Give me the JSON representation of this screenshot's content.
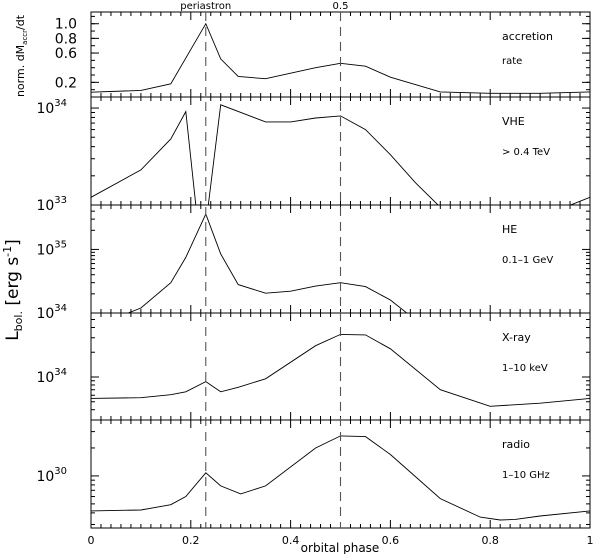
{
  "chart_data": {
    "type": "line",
    "xlabel": "orbital phase",
    "shared_ylabel": "L_bol. [erg s^-1]",
    "xlim": [
      0,
      1
    ],
    "x_ticks": [
      "0",
      "0.2",
      "0.4",
      "0.6",
      "0.8",
      "1"
    ],
    "markers": [
      {
        "x": 0.23,
        "label": "periastron"
      },
      {
        "x": 0.5,
        "label": "0.5"
      }
    ],
    "panels": [
      {
        "id": "accretion",
        "ylabel": "norm. dM_accr/dt",
        "scale": "linear",
        "ylim": [
          0.0,
          1.16
        ],
        "y_ticks": [
          {
            "v": 0.2,
            "label": "0.2"
          },
          {
            "v": 0.6,
            "label": "0.6"
          },
          {
            "v": 0.8,
            "label": "0.8"
          },
          {
            "v": 1.0,
            "label": "1.0"
          }
        ],
        "label_lines": [
          "accretion",
          "rate"
        ],
        "series": [
          {
            "x": [
              0.0,
              0.1,
              0.16,
              0.23,
              0.26,
              0.295,
              0.35,
              0.45,
              0.5,
              0.55,
              0.6,
              0.7,
              0.8,
              0.9,
              1.0
            ],
            "y": [
              0.065,
              0.09,
              0.18,
              1.0,
              0.52,
              0.28,
              0.25,
              0.4,
              0.46,
              0.42,
              0.27,
              0.07,
              0.05,
              0.05,
              0.07
            ]
          }
        ]
      },
      {
        "id": "vhe",
        "scale": "log",
        "ylim": [
          1e+33,
          1.3e+34
        ],
        "y_ticks": [
          {
            "v": 1e+33,
            "label": "10",
            "exp": "33"
          },
          {
            "v": 1e+34,
            "label": "10",
            "exp": "34"
          }
        ],
        "label_lines": [
          "VHE",
          "> 0.4 TeV"
        ],
        "series": [
          {
            "x": [
              0.0,
              0.1,
              0.16,
              0.19,
              0.21,
              0.235,
              0.26,
              0.35,
              0.4,
              0.45,
              0.5,
              0.55,
              0.6,
              0.65,
              0.7,
              0.8,
              0.9,
              0.95,
              1.0
            ],
            "y": [
              1.2e+33,
              2.3e+33,
              4.8e+33,
              9.2e+33,
              1e+33,
              1e+33,
              1.08e+34,
              7.2e+33,
              7.2e+33,
              7.9e+33,
              8.3e+33,
              6e+33,
              3.3e+33,
              1.7e+33,
              9.5e+32,
              9.5e+32,
              9.5e+32,
              9.5e+32,
              1.2e+33
            ]
          }
        ]
      },
      {
        "id": "he",
        "scale": "log",
        "ylim": [
          1e+34,
          5e+35
        ],
        "y_ticks": [
          {
            "v": 1e+34,
            "label": "10",
            "exp": "34"
          },
          {
            "v": 1e+35,
            "label": "10",
            "exp": "35"
          }
        ],
        "label_lines": [
          "HE",
          "0.1–1 GeV"
        ],
        "series": [
          {
            "x": [
              0.06,
              0.1,
              0.16,
              0.19,
              0.23,
              0.26,
              0.295,
              0.35,
              0.4,
              0.45,
              0.5,
              0.55,
              0.6,
              0.64
            ],
            "y": [
              9e+33,
              1.2e+34,
              3e+34,
              7.5e+34,
              3.6e+35,
              8.5e+34,
              2.8e+34,
              2.05e+34,
              2.2e+34,
              2.65e+34,
              3e+34,
              2.6e+34,
              1.6e+34,
              9e+33
            ]
          }
        ]
      },
      {
        "id": "xray",
        "scale": "log",
        "ylim": [
          3e+33,
          6e+34
        ],
        "y_ticks": [
          {
            "v": 1e+34,
            "label": "10",
            "exp": "34"
          }
        ],
        "label_lines": [
          "X-ray",
          "1–10 keV"
        ],
        "series": [
          {
            "x": [
              0.0,
              0.1,
              0.16,
              0.19,
              0.23,
              0.26,
              0.295,
              0.35,
              0.45,
              0.5,
              0.55,
              0.6,
              0.7,
              0.8,
              0.9,
              1.0
            ],
            "y": [
              5.5e+33,
              5.6e+33,
              6.1e+33,
              6.6e+33,
              8.8e+33,
              6.6e+33,
              7.5e+33,
              9.5e+33,
              2.4e+34,
              3.3e+34,
              3.25e+34,
              2.2e+34,
              7e+33,
              4.4e+33,
              4.8e+33,
              5.5e+33
            ]
          }
        ]
      },
      {
        "id": "radio",
        "scale": "log",
        "ylim": [
          2.75e+29,
          4e+30
        ],
        "y_ticks": [
          {
            "v": 1e+30,
            "label": "10",
            "exp": "30"
          }
        ],
        "label_lines": [
          "radio",
          "1–10 GHz"
        ],
        "series": [
          {
            "x": [
              0.0,
              0.1,
              0.16,
              0.19,
              0.23,
              0.26,
              0.3,
              0.35,
              0.45,
              0.5,
              0.55,
              0.6,
              0.7,
              0.78,
              0.82,
              0.85,
              0.9,
              1.0
            ],
            "y": [
              4.2e+29,
              4.3e+29,
              4.9e+29,
              6e+29,
              1.08e+30,
              7.8e+29,
              6.4e+29,
              7.8e+29,
              2e+30,
              2.7e+30,
              2.65e+30,
              1.7e+30,
              5.7e+29,
              3.6e+29,
              3.35e+29,
              3.4e+29,
              3.7e+29,
              4.2e+29
            ]
          }
        ]
      }
    ]
  }
}
